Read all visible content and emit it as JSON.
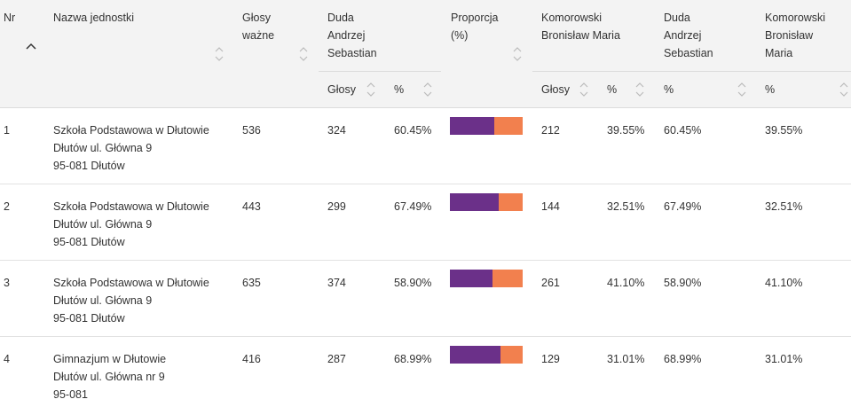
{
  "header": {
    "nr": "Nr",
    "nazwa": "Nazwa jednostki",
    "glosy_wazne_1": "Głosy",
    "glosy_wazne_2": "ważne",
    "duda_1": "Duda",
    "duda_2": "Andrzej",
    "duda_3": "Sebastian",
    "proporcja_1": "Proporcja",
    "proporcja_2": "(%)",
    "komorowski_1": "Komorowski",
    "komorowski_2": "Bronisław Maria",
    "duda_pct_1": "Duda",
    "duda_pct_2": "Andrzej",
    "duda_pct_3": "Sebastian",
    "komorowski_pct_1": "Komorowski",
    "komorowski_pct_2": "Bronisław",
    "komorowski_pct_3": "Maria",
    "sub_glosy": "Głosy",
    "sub_pct": "%",
    "sub_glosy_2": "Głosy",
    "sub_pct_2": "%",
    "sub_pct_3": "%",
    "sub_pct_4": "%"
  },
  "colors": {
    "duda": "#6b3089",
    "komorowski": "#f2804e"
  },
  "rows": [
    {
      "nr": "1",
      "name1": "Szkoła Podstawowa w Dłutowie",
      "name2": "Dłutów ul. Główna 9",
      "name3": "95-081 Dłutów",
      "valid": "536",
      "duda_votes": "324",
      "duda_pct": "60.45%",
      "duda_frac": 0.6045,
      "kom_votes": "212",
      "kom_pct": "39.55%",
      "duda_pct_b": "60.45%",
      "kom_pct_b": "39.55%"
    },
    {
      "nr": "2",
      "name1": "Szkoła Podstawowa w Dłutowie",
      "name2": "Dłutów ul. Główna 9",
      "name3": "95-081 Dłutów",
      "valid": "443",
      "duda_votes": "299",
      "duda_pct": "67.49%",
      "duda_frac": 0.6749,
      "kom_votes": "144",
      "kom_pct": "32.51%",
      "duda_pct_b": "67.49%",
      "kom_pct_b": "32.51%"
    },
    {
      "nr": "3",
      "name1": "Szkoła Podstawowa w Dłutowie",
      "name2": "Dłutów ul. Główna 9",
      "name3": "95-081 Dłutów",
      "valid": "635",
      "duda_votes": "374",
      "duda_pct": "58.90%",
      "duda_frac": 0.589,
      "kom_votes": "261",
      "kom_pct": "41.10%",
      "duda_pct_b": "58.90%",
      "kom_pct_b": "41.10%"
    },
    {
      "nr": "4",
      "name1": "Gimnazjum w Dłutowie",
      "name2": "Dłutów ul. Główna nr 9",
      "name3": "95-081",
      "valid": "416",
      "duda_votes": "287",
      "duda_pct": "68.99%",
      "duda_frac": 0.6899,
      "kom_votes": "129",
      "kom_pct": "31.01%",
      "duda_pct_b": "68.99%",
      "kom_pct_b": "31.01%"
    }
  ]
}
